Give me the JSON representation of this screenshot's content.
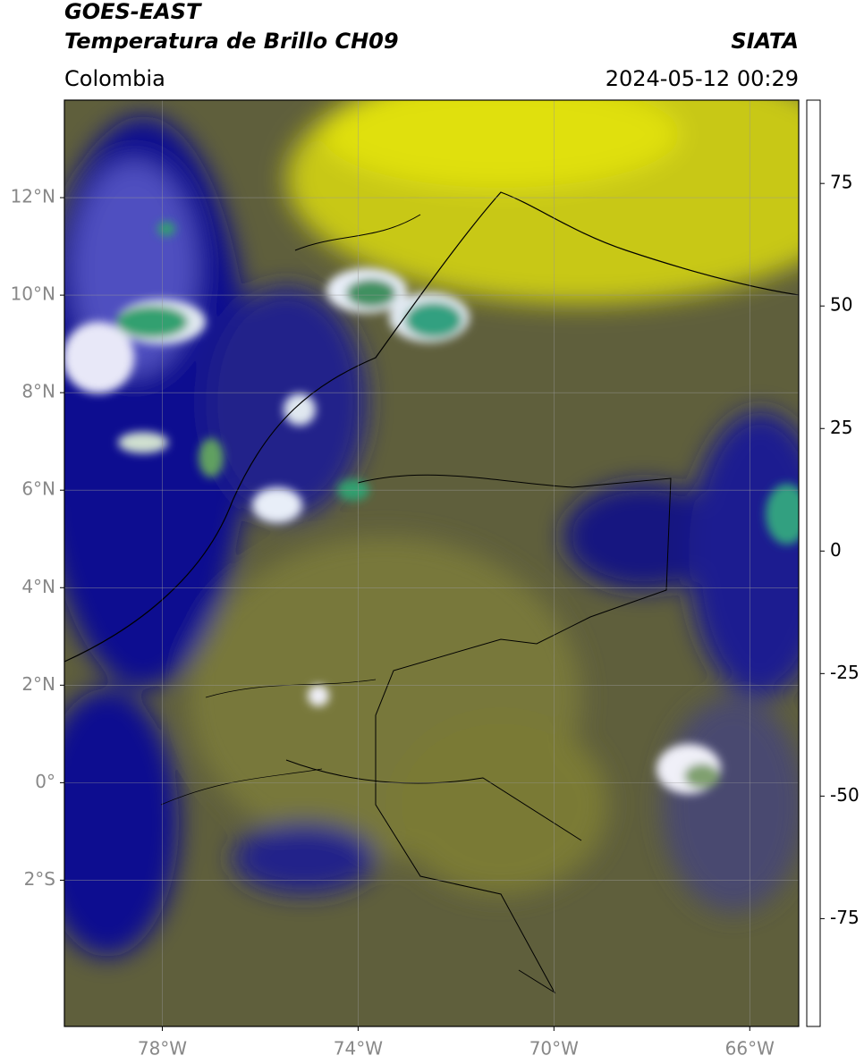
{
  "header": {
    "title": "GOES-EAST",
    "subtitle": "Temperatura de Brillo CH09",
    "region": "Colombia",
    "source": "SIATA",
    "datetime": "2024-05-12 00:29"
  },
  "map": {
    "xlim": [
      -80,
      -65
    ],
    "ylim": [
      -5,
      14
    ],
    "xticks": [
      {
        "value": -78,
        "label": "78°W"
      },
      {
        "value": -74,
        "label": "74°W"
      },
      {
        "value": -70,
        "label": "70°W"
      },
      {
        "value": -66,
        "label": "66°W"
      }
    ],
    "yticks": [
      {
        "value": 12,
        "label": "12°N"
      },
      {
        "value": 10,
        "label": "10°N"
      },
      {
        "value": 8,
        "label": "8°N"
      },
      {
        "value": 6,
        "label": "6°N"
      },
      {
        "value": 4,
        "label": "4°N"
      },
      {
        "value": 2,
        "label": "2°N"
      },
      {
        "value": 0,
        "label": "0°"
      },
      {
        "value": -2,
        "label": "2°S"
      }
    ],
    "grid": true
  },
  "colorbar": {
    "lim": [
      -97,
      92
    ],
    "ticks": [
      75,
      50,
      25,
      0,
      -25,
      -50,
      -75
    ],
    "colormap": [
      {
        "value": -97,
        "color": "#ffffff"
      },
      {
        "value": -93,
        "color": "#ffffff"
      },
      {
        "value": -93,
        "color": "#00e5e5"
      },
      {
        "value": -75,
        "color": "#20a888"
      },
      {
        "value": -65,
        "color": "#2a7a20"
      },
      {
        "value": -55,
        "color": "#a8cc98"
      },
      {
        "value": -50,
        "color": "#ffffff"
      },
      {
        "value": -40,
        "color": "#8c8cd0"
      },
      {
        "value": -30,
        "color": "#000080"
      },
      {
        "value": -25,
        "color": "#505050"
      },
      {
        "value": -20,
        "color": "#707034"
      },
      {
        "value": -10,
        "color": "#e5e500"
      },
      {
        "value": 0,
        "color": "#ff9900"
      },
      {
        "value": 8,
        "color": "#ff0000"
      },
      {
        "value": 8,
        "color": "#000000"
      },
      {
        "value": 92,
        "color": "#000000"
      }
    ]
  }
}
